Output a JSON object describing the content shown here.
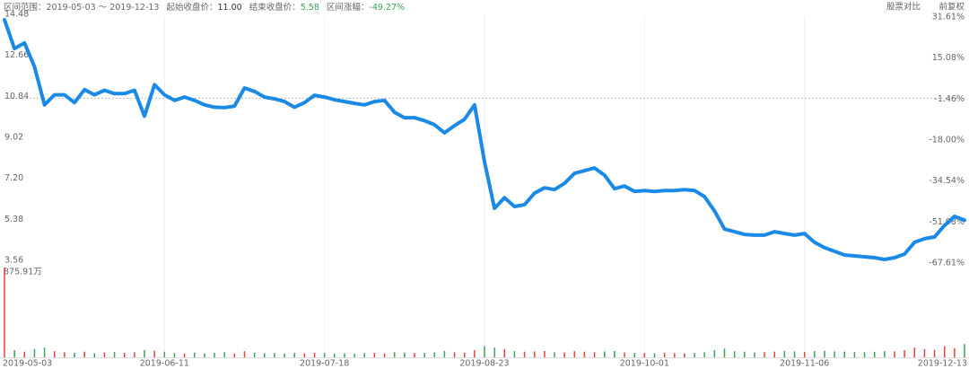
{
  "header": {
    "range_label": "区间范围：",
    "range": "2019-05-03 ～ 2019-12-13",
    "start_label": "起始收盘价：",
    "start_price": "11.00",
    "end_label": "结束收盘价：",
    "end_price": "5.58",
    "change_label": "区间涨幅：",
    "change": "-49.27%",
    "compare": "股票对比",
    "adjust": "前复权"
  },
  "chart_data": {
    "type": "line",
    "categories": [
      "2019-05-03",
      null,
      null,
      null,
      null,
      null,
      null,
      null,
      null,
      null,
      null,
      null,
      null,
      null,
      null,
      null,
      "2019-06-11",
      null,
      null,
      null,
      null,
      null,
      null,
      null,
      null,
      null,
      null,
      null,
      null,
      null,
      null,
      null,
      "2019-07-18",
      null,
      null,
      null,
      null,
      null,
      null,
      null,
      null,
      null,
      null,
      null,
      null,
      null,
      null,
      null,
      "2019-08-23",
      null,
      null,
      null,
      null,
      null,
      null,
      null,
      null,
      null,
      null,
      null,
      null,
      null,
      null,
      null,
      "2019-10-01",
      null,
      null,
      null,
      null,
      null,
      null,
      null,
      null,
      null,
      null,
      null,
      null,
      null,
      null,
      null,
      "2019-11-06",
      null,
      null,
      null,
      null,
      null,
      null,
      null,
      null,
      null,
      null,
      null,
      null,
      null,
      null,
      null,
      "2019-12-13"
    ],
    "ylim": [
      3.56,
      14.48
    ],
    "yticks": [
      14.48,
      12.66,
      10.84,
      9.02,
      {
        "value": 7.2,
        "label": "7.20"
      },
      5.38,
      3.56
    ],
    "y2lim": [
      -67.61,
      31.61
    ],
    "y2ticks": [
      {
        "value": 31.61,
        "label": "31.61%"
      },
      {
        "value": 15.08,
        "label": "15.08%"
      },
      {
        "value": -1.46,
        "label": "-1.46%"
      },
      {
        "value": -18,
        "label": "-18.00%"
      },
      {
        "value": -34.54,
        "label": "-34.54%"
      },
      {
        "value": -51.08,
        "label": "-51.08%"
      },
      {
        "value": -67.61,
        "label": "-67.61%"
      }
    ],
    "baseline": 11,
    "up_color": "#e8413b",
    "down_color": "#3aa35a",
    "series": [
      {
        "color": "#1a8ae6",
        "values": [
          14.48,
          13.2,
          13.45,
          12.4,
          10.7,
          11.15,
          11.15,
          10.8,
          11.38,
          11.15,
          11.35,
          11.2,
          11.2,
          11.35,
          10.2,
          11.6,
          11.15,
          10.9,
          11.05,
          10.9,
          10.7,
          10.6,
          10.58,
          10.65,
          11.45,
          11.3,
          11.05,
          10.97,
          10.85,
          10.6,
          10.8,
          11.13,
          11.05,
          10.93,
          10.85,
          10.77,
          10.7,
          10.85,
          10.9,
          10.37,
          10.13,
          10.13,
          10.0,
          9.82,
          9.46,
          9.78,
          10.06,
          10.7,
          8.18,
          6.11,
          6.58,
          6.19,
          6.27,
          6.78,
          7.02,
          6.94,
          7.22,
          7.66,
          7.78,
          7.9,
          7.58,
          6.98,
          7.1,
          6.86,
          6.9,
          6.86,
          6.9,
          6.9,
          6.94,
          6.9,
          6.63,
          5.99,
          5.19,
          5.07,
          4.95,
          4.92,
          4.92,
          5.07,
          4.99,
          4.92,
          4.99,
          4.6,
          4.36,
          4.2,
          4.04,
          4.0,
          3.96,
          3.92,
          3.84,
          3.92,
          4.08,
          4.6,
          4.76,
          4.84,
          5.35,
          5.75,
          5.58
        ]
      }
    ],
    "volume": {
      "type": "bar",
      "ylim": [
        0,
        875.91
      ],
      "yticks": [
        {
          "value": 875.91,
          "label": "875.91万"
        }
      ],
      "values": [
        875.91,
        70,
        55,
        80,
        95,
        60,
        50,
        45,
        55,
        40,
        48,
        52,
        44,
        50,
        70,
        65,
        55,
        42,
        38,
        46,
        40,
        44,
        50,
        38,
        60,
        45,
        40,
        42,
        38,
        44,
        40,
        46,
        42,
        38,
        40,
        36,
        42,
        44,
        40,
        50,
        46,
        42,
        44,
        48,
        62,
        50,
        46,
        70,
        110,
        95,
        80,
        60,
        55,
        58,
        62,
        50,
        48,
        60,
        55,
        50,
        58,
        62,
        48,
        44,
        42,
        40,
        46,
        42,
        40,
        44,
        50,
        70,
        85,
        60,
        55,
        48,
        50,
        56,
        62,
        58,
        52,
        60,
        64,
        58,
        56,
        52,
        50,
        54,
        60,
        58,
        70,
        95,
        80,
        72,
        110,
        90,
        130
      ]
    }
  }
}
